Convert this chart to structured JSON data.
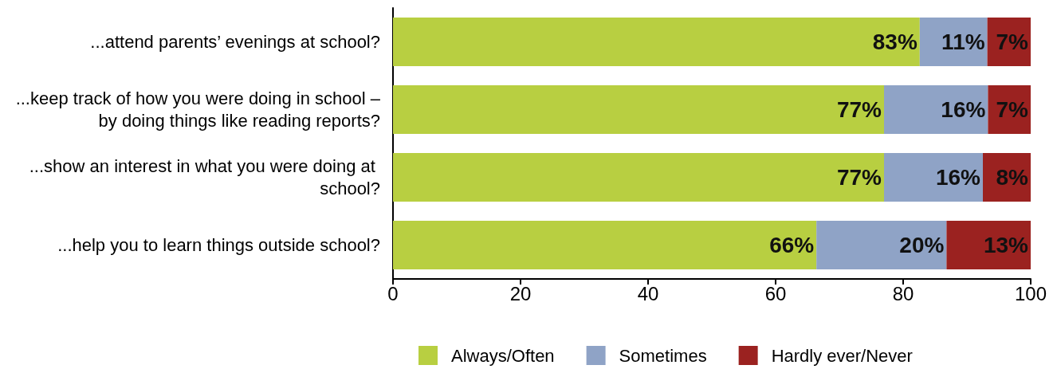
{
  "chart_data": {
    "type": "bar",
    "orientation": "horizontal",
    "stacked": true,
    "categories": [
      "...attend parents’ evenings at school?",
      "...keep track of how you were doing in school – by doing things like reading reports?",
      "...show an interest in what you were doing at school?",
      "...help you to learn things outside school?"
    ],
    "series": [
      {
        "name": "Always/Often",
        "color": "#b8cf41",
        "values": [
          82.6,
          77,
          77,
          66.4
        ],
        "value_labels": [
          "83%",
          "77%",
          "77%",
          "66%"
        ]
      },
      {
        "name": "Sometimes",
        "color": "#8fa3c6",
        "values": [
          10.6,
          16.3,
          15.5,
          20.4
        ],
        "value_labels": [
          "11%",
          "16%",
          "16%",
          "20%"
        ]
      },
      {
        "name": "Hardly ever/Never",
        "color": "#9b2220",
        "values": [
          6.8,
          6.7,
          7.5,
          13.2
        ],
        "value_labels": [
          "7%",
          "7%",
          "8%",
          "13%"
        ]
      }
    ],
    "xlim": [
      0,
      100
    ],
    "xticks": [
      0,
      20,
      40,
      60,
      80,
      100
    ],
    "grid": false,
    "legend": "bottom"
  }
}
